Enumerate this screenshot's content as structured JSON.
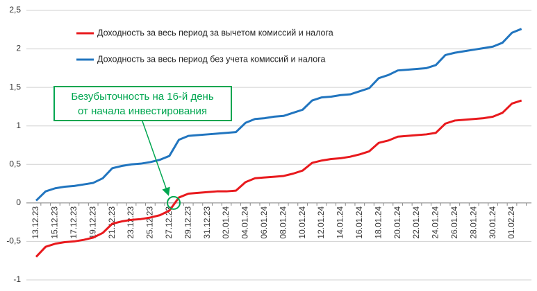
{
  "chart_data": {
    "type": "line",
    "categories": [
      "13.12.23",
      null,
      "15.12.23",
      null,
      "17.12.23",
      null,
      "19.12.23",
      null,
      "21.12.23",
      null,
      "23.12.23",
      null,
      "25.12.23",
      null,
      "27.12.23",
      null,
      "29.12.23",
      null,
      "31.12.23",
      null,
      "02.01.24",
      null,
      "04.01.24",
      null,
      "06.01.24",
      null,
      "08.01.24",
      null,
      "10.01.24",
      null,
      "12.01.24",
      null,
      "14.01.24",
      null,
      "16.01.24",
      null,
      "18.01.24",
      null,
      "20.01.24",
      null,
      "22.01.24",
      null,
      "24.01.24",
      null,
      "26.01.24",
      null,
      "28.01.24",
      null,
      "30.01.24",
      null,
      "01.02.24",
      null
    ],
    "series": [
      {
        "name": "Доходность за весь период за вычетом комиссий и налога",
        "color": "#e8191d",
        "values": [
          -0.7,
          -0.57,
          -0.53,
          -0.51,
          -0.5,
          -0.48,
          -0.45,
          -0.39,
          -0.27,
          -0.24,
          -0.22,
          -0.21,
          -0.19,
          -0.16,
          -0.1,
          0.07,
          0.12,
          0.13,
          0.14,
          0.15,
          0.15,
          0.16,
          0.27,
          0.32,
          0.33,
          0.34,
          0.35,
          0.38,
          0.42,
          0.52,
          0.55,
          0.57,
          0.58,
          0.6,
          0.63,
          0.67,
          0.78,
          0.81,
          0.86,
          0.87,
          0.88,
          0.89,
          0.91,
          1.03,
          1.07,
          1.08,
          1.09,
          1.1,
          1.12,
          1.17,
          1.29,
          1.33
        ]
      },
      {
        "name": "Доходность за весь период без учета комиссий и налога",
        "color": "#2175bf",
        "values": [
          0.03,
          0.15,
          0.19,
          0.21,
          0.22,
          0.24,
          0.26,
          0.32,
          0.45,
          0.48,
          0.5,
          0.51,
          0.53,
          0.56,
          0.61,
          0.82,
          0.87,
          0.88,
          0.89,
          0.9,
          0.91,
          0.92,
          1.04,
          1.09,
          1.1,
          1.12,
          1.13,
          1.17,
          1.21,
          1.33,
          1.37,
          1.38,
          1.4,
          1.41,
          1.45,
          1.49,
          1.62,
          1.66,
          1.72,
          1.73,
          1.74,
          1.75,
          1.79,
          1.92,
          1.95,
          1.97,
          1.99,
          2.01,
          2.03,
          2.08,
          2.21,
          2.26
        ]
      }
    ],
    "ylim": [
      -1,
      2.5
    ],
    "yticks": [
      -1,
      {
        "value": -0.5,
        "label": "-0,5"
      },
      0,
      {
        "value": 0.5,
        "label": "0,5"
      },
      1,
      {
        "value": 1.5,
        "label": "1,5"
      },
      2,
      {
        "value": 2.5,
        "label": "2,5"
      }
    ],
    "grid": true,
    "legend": "top-left",
    "annotation": [
      "Безубыточность на 16-й день",
      "от начала инвестирования"
    ]
  }
}
